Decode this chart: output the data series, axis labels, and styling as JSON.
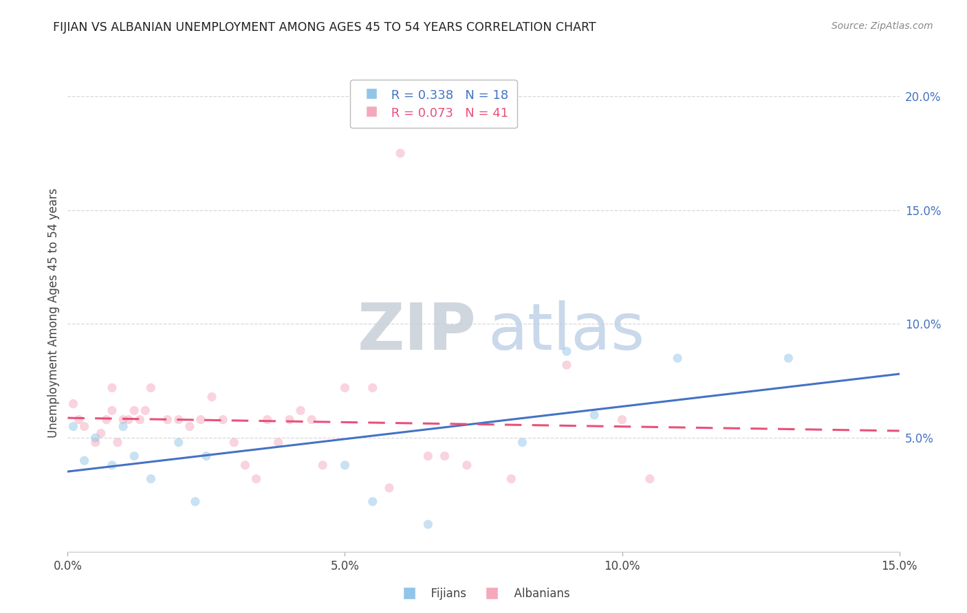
{
  "title": "FIJIAN VS ALBANIAN UNEMPLOYMENT AMONG AGES 45 TO 54 YEARS CORRELATION CHART",
  "source": "Source: ZipAtlas.com",
  "ylabel": "Unemployment Among Ages 45 to 54 years",
  "xlim": [
    0.0,
    0.15
  ],
  "ylim": [
    0.0,
    0.21
  ],
  "xticks": [
    0.0,
    0.05,
    0.1,
    0.15
  ],
  "xticklabels": [
    "0.0%",
    "5.0%",
    "10.0%",
    "15.0%"
  ],
  "yticks_right": [
    0.05,
    0.1,
    0.15,
    0.2
  ],
  "yticklabels_right": [
    "5.0%",
    "10.0%",
    "15.0%",
    "20.0%"
  ],
  "fijian_color": "#92C5E8",
  "albanian_color": "#F4A8BC",
  "fijian_line_color": "#4472C4",
  "albanian_line_color": "#E8507A",
  "fijian_R": 0.338,
  "fijian_N": 18,
  "albanian_R": 0.073,
  "albanian_N": 41,
  "fijian_x": [
    0.001,
    0.003,
    0.005,
    0.008,
    0.01,
    0.012,
    0.015,
    0.02,
    0.023,
    0.025,
    0.05,
    0.055,
    0.065,
    0.082,
    0.09,
    0.095,
    0.11,
    0.13
  ],
  "fijian_y": [
    0.055,
    0.04,
    0.05,
    0.038,
    0.055,
    0.042,
    0.032,
    0.048,
    0.022,
    0.042,
    0.038,
    0.022,
    0.012,
    0.048,
    0.088,
    0.06,
    0.085,
    0.085
  ],
  "albanian_x": [
    0.001,
    0.002,
    0.003,
    0.005,
    0.006,
    0.007,
    0.008,
    0.008,
    0.009,
    0.01,
    0.011,
    0.012,
    0.013,
    0.014,
    0.015,
    0.018,
    0.02,
    0.022,
    0.024,
    0.026,
    0.028,
    0.03,
    0.032,
    0.034,
    0.036,
    0.038,
    0.04,
    0.042,
    0.044,
    0.046,
    0.05,
    0.055,
    0.058,
    0.06,
    0.065,
    0.068,
    0.072,
    0.08,
    0.09,
    0.1,
    0.105
  ],
  "albanian_y": [
    0.065,
    0.058,
    0.055,
    0.048,
    0.052,
    0.058,
    0.072,
    0.062,
    0.048,
    0.058,
    0.058,
    0.062,
    0.058,
    0.062,
    0.072,
    0.058,
    0.058,
    0.055,
    0.058,
    0.068,
    0.058,
    0.048,
    0.038,
    0.032,
    0.058,
    0.048,
    0.058,
    0.062,
    0.058,
    0.038,
    0.072,
    0.072,
    0.028,
    0.175,
    0.042,
    0.042,
    0.038,
    0.032,
    0.082,
    0.058,
    0.032
  ],
  "background_color": "#ffffff",
  "grid_color": "#d8d8d8",
  "marker_size": 90,
  "marker_alpha": 0.5
}
